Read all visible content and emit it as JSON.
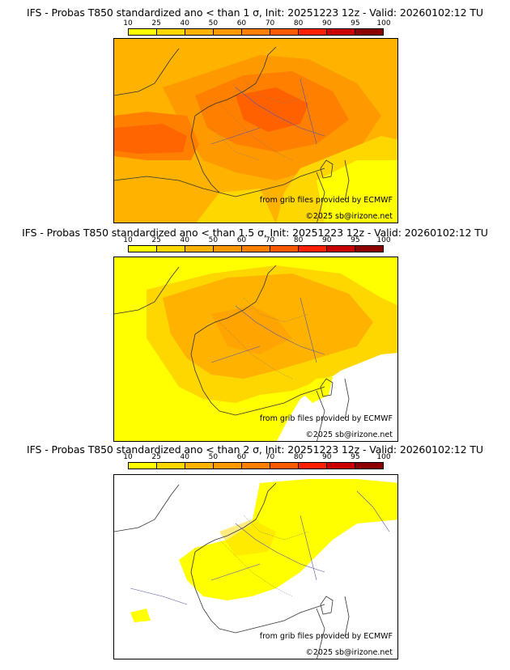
{
  "colorbar": {
    "ticks": [
      "10",
      "25",
      "40",
      "50",
      "60",
      "70",
      "80",
      "90",
      "95",
      "100"
    ],
    "colors": [
      "#ffff00",
      "#ffd700",
      "#ffb300",
      "#ff9900",
      "#ff7f00",
      "#ff5a00",
      "#ff2000",
      "#c80000",
      "#8c0000"
    ]
  },
  "panels": [
    {
      "title": "IFS - Probas T850  standardized ano < than 1 σ, Init: 20251223 12z - Valid: 20260102:12 TU",
      "source_credit": "from grib files provided by ECMWF",
      "copyright": "©2025 sb@irizone.net"
    },
    {
      "title": "IFS - Probas T850  standardized ano < than 1.5 σ, Init: 20251223 12z - Valid: 20260102:12 TU",
      "source_credit": "from grib files provided by ECMWF",
      "copyright": "©2025 sb@irizone.net"
    },
    {
      "title": "IFS - Probas T850  standardized ano < than 2 σ, Init: 20251223 12z - Valid: 20260102:12 TU",
      "source_credit": "from grib files provided by ECMWF",
      "copyright": "©2025 sb@irizone.net"
    }
  ]
}
